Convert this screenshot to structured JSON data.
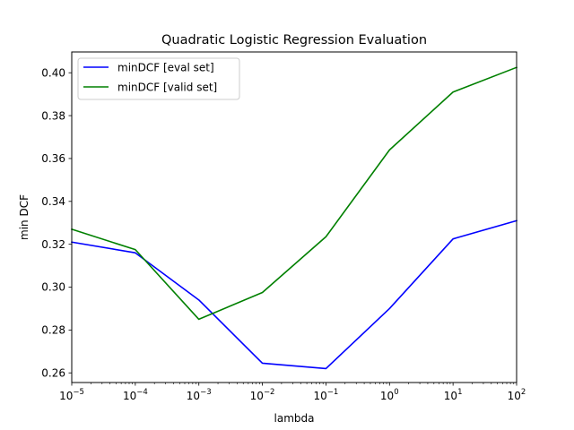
{
  "chart_data": {
    "type": "line",
    "title": "Quadratic Logistic Regression Evaluation",
    "xlabel": "lambda",
    "ylabel": "min DCF",
    "xscale": "log",
    "xlim": [
      1e-05,
      100
    ],
    "ylim": [
      0.2555,
      0.4097
    ],
    "x_ticks": [
      {
        "base": "10",
        "exp": "−5"
      },
      {
        "base": "10",
        "exp": "−4"
      },
      {
        "base": "10",
        "exp": "−3"
      },
      {
        "base": "10",
        "exp": "−2"
      },
      {
        "base": "10",
        "exp": "−1"
      },
      {
        "base": "10",
        "exp": "0"
      },
      {
        "base": "10",
        "exp": "1"
      },
      {
        "base": "10",
        "exp": "2"
      }
    ],
    "y_ticks": [
      "0.26",
      "0.28",
      "0.30",
      "0.32",
      "0.34",
      "0.36",
      "0.38",
      "0.40"
    ],
    "x": [
      1e-05,
      0.0001,
      0.001,
      0.01,
      0.1,
      1,
      10,
      100
    ],
    "series": [
      {
        "name": "minDCF [eval set]",
        "color": "#0000ff",
        "values": [
          0.321,
          0.316,
          0.294,
          0.2645,
          0.262,
          0.29,
          0.3225,
          0.331
        ]
      },
      {
        "name": "minDCF [valid set]",
        "color": "#008000",
        "values": [
          0.327,
          0.3175,
          0.285,
          0.2975,
          0.3235,
          0.364,
          0.391,
          0.4025
        ]
      }
    ],
    "grid": false,
    "legend_position": "top-left"
  }
}
